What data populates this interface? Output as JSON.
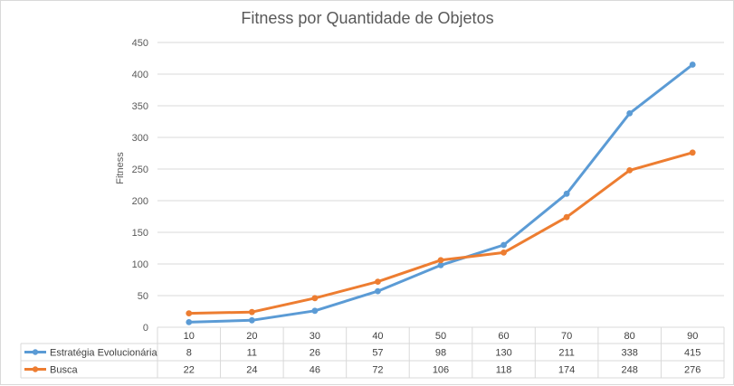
{
  "chart_data": {
    "type": "line",
    "title": "Fitness por Quantidade de Objetos",
    "xlabel": "",
    "ylabel": "Fitness",
    "categories": [
      "10",
      "20",
      "30",
      "40",
      "50",
      "60",
      "70",
      "80",
      "90"
    ],
    "ylim": [
      0,
      450
    ],
    "yticks": [
      0,
      50,
      100,
      150,
      200,
      250,
      300,
      350,
      400,
      450
    ],
    "grid": true,
    "legend": "data-table-below",
    "series": [
      {
        "name": "Estratégia Evolucionária",
        "color": "#5b9bd5",
        "values": [
          8,
          11,
          26,
          57,
          98,
          130,
          211,
          338,
          415
        ]
      },
      {
        "name": "Busca",
        "color": "#ed7d31",
        "values": [
          22,
          24,
          46,
          72,
          106,
          118,
          174,
          248,
          276
        ]
      }
    ]
  }
}
